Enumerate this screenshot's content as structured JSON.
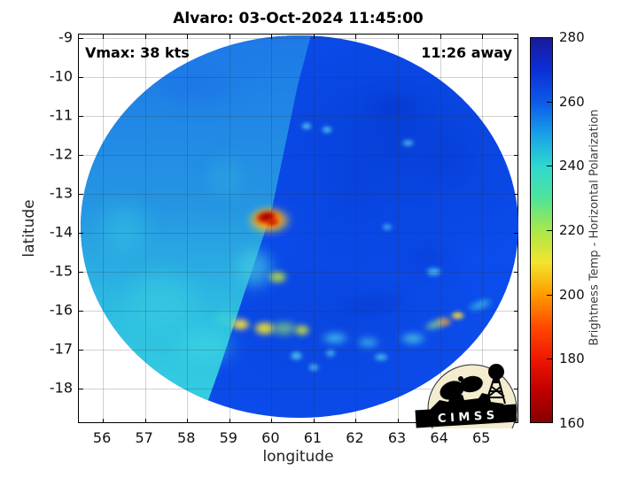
{
  "chart_data": {
    "type": "heatmap",
    "title": "Alvaro: 03-Oct-2024 11:45:00",
    "storm_name": "Alvaro",
    "datetime": "03-Oct-2024 11:45:00",
    "annotations": {
      "vmax": "Vmax: 38 kts",
      "eta": "11:26 away"
    },
    "xlabel": "longitude",
    "ylabel": "latitude",
    "xlim": [
      55.43,
      65.88
    ],
    "ylim": [
      -18.91,
      -8.91
    ],
    "xticks": [
      56,
      57,
      58,
      59,
      60,
      61,
      62,
      63,
      64,
      65
    ],
    "yticks": [
      -9,
      -10,
      -11,
      -12,
      -13,
      -14,
      -15,
      -16,
      -17,
      -18
    ],
    "grid": true,
    "colorbar": {
      "label": "Brightness Temp - Horizontal Polarization",
      "min": 160,
      "max": 280,
      "ticks": [
        160,
        180,
        200,
        220,
        240,
        260,
        280
      ],
      "stops": [
        {
          "v": 160,
          "c": "#870000"
        },
        {
          "v": 170,
          "c": "#c00000"
        },
        {
          "v": 180,
          "c": "#f01800"
        },
        {
          "v": 190,
          "c": "#ff4a00"
        },
        {
          "v": 200,
          "c": "#ff9c00"
        },
        {
          "v": 210,
          "c": "#f2e52e"
        },
        {
          "v": 220,
          "c": "#a8e84a"
        },
        {
          "v": 230,
          "c": "#4fe49a"
        },
        {
          "v": 240,
          "c": "#2ed8cf"
        },
        {
          "v": 250,
          "c": "#18a0e8"
        },
        {
          "v": 260,
          "c": "#0c5ae8"
        },
        {
          "v": 270,
          "c": "#0b2fd6"
        },
        {
          "v": 280,
          "c": "#1a1a99"
        }
      ]
    },
    "swath": {
      "center_lon": 60.67,
      "center_lat": -13.84,
      "radius_lon": 5.19,
      "radius_lat": 4.91,
      "left_half_mean_tb_k": 242,
      "right_half_mean_tb_k": 255
    },
    "features": [
      {
        "name": "dark-patch",
        "lon": 62.9,
        "lat": -10.8,
        "w": 1.9,
        "h": 1.0,
        "color": "#0634c8",
        "opacity": 0.5,
        "blur": 8,
        "rot": 0,
        "tb_k": 258
      },
      {
        "name": "dark-patch",
        "lon": 64.1,
        "lat": -12.0,
        "w": 1.3,
        "h": 1.6,
        "color": "#0a3cd4",
        "opacity": 0.45,
        "blur": 8,
        "rot": 0,
        "tb_k": 258
      },
      {
        "name": "dark-patch",
        "lon": 61.9,
        "lat": -12.9,
        "w": 1.2,
        "h": 1.6,
        "color": "#0a40d8",
        "opacity": 0.4,
        "blur": 8,
        "rot": 0,
        "tb_k": 257
      },
      {
        "name": "dark-patch",
        "lon": 63.7,
        "lat": -14.7,
        "w": 1.5,
        "h": 1.3,
        "color": "#0a3ad0",
        "opacity": 0.4,
        "blur": 8,
        "rot": 0,
        "tb_k": 257
      },
      {
        "name": "dark-band",
        "lon": 62.4,
        "lat": -15.85,
        "w": 2.4,
        "h": 0.8,
        "color": "#0836c8",
        "opacity": 0.4,
        "blur": 6,
        "rot": -8,
        "tb_k": 258
      },
      {
        "name": "left-cyan-area",
        "lon": 57.4,
        "lat": -15.8,
        "w": 2.6,
        "h": 2.3,
        "color": "#38cce0",
        "opacity": 0.65,
        "blur": 10,
        "rot": 0,
        "tb_k": 238
      },
      {
        "name": "left-cyan-area",
        "lon": 58.4,
        "lat": -16.9,
        "w": 1.9,
        "h": 1.4,
        "color": "#3cd4e4",
        "opacity": 0.6,
        "blur": 8,
        "rot": 0,
        "tb_k": 238
      },
      {
        "name": "left-cyan-area",
        "lon": 56.5,
        "lat": -13.9,
        "w": 1.7,
        "h": 2.0,
        "color": "#34c4e4",
        "opacity": 0.5,
        "blur": 10,
        "rot": 0,
        "tb_k": 240
      },
      {
        "name": "left-blue-top",
        "lon": 58.2,
        "lat": -10.2,
        "w": 2.6,
        "h": 1.4,
        "color": "#1b6ee8",
        "opacity": 0.5,
        "blur": 10,
        "rot": 0,
        "tb_k": 252
      },
      {
        "name": "left-cyan-area",
        "lon": 58.9,
        "lat": -12.6,
        "w": 1.3,
        "h": 1.6,
        "color": "#2fb4e4",
        "opacity": 0.35,
        "blur": 8,
        "rot": 0,
        "tb_k": 243
      },
      {
        "name": "core-cyan-halo",
        "lon": 59.6,
        "lat": -14.9,
        "w": 1.3,
        "h": 1.5,
        "color": "#45cce0",
        "opacity": 0.65,
        "blur": 6,
        "rot": 0,
        "tb_k": 235
      },
      {
        "name": "core-yellow-ring",
        "lon": 59.95,
        "lat": -13.68,
        "w": 1.3,
        "h": 0.85,
        "color": "#ffd21c",
        "opacity": 0.95,
        "blur": 4,
        "rot": 0,
        "tb_k": 205
      },
      {
        "name": "core-orange-ring",
        "lon": 59.92,
        "lat": -13.64,
        "w": 0.95,
        "h": 0.6,
        "color": "#ff5a00",
        "opacity": 0.95,
        "blur": 3,
        "rot": 0,
        "tb_k": 185
      },
      {
        "name": "core-deep-red",
        "lon": 59.87,
        "lat": -13.6,
        "w": 0.6,
        "h": 0.36,
        "color": "#a00000",
        "opacity": 0.97,
        "blur": 2,
        "rot": -12,
        "tb_k": 165
      },
      {
        "name": "core-red",
        "lon": 60.03,
        "lat": -13.73,
        "w": 0.4,
        "h": 0.28,
        "color": "#cc1400",
        "opacity": 0.9,
        "blur": 2,
        "rot": 0,
        "tb_k": 175
      },
      {
        "name": "green-cell",
        "lon": 60.15,
        "lat": -15.14,
        "w": 0.6,
        "h": 0.45,
        "color": "#b8e040",
        "opacity": 0.85,
        "blur": 3,
        "rot": 0,
        "tb_k": 215
      },
      {
        "name": "rainband-cyan",
        "lon": 58.9,
        "lat": -16.2,
        "w": 0.8,
        "h": 0.55,
        "color": "#3dd0d8",
        "opacity": 0.8,
        "blur": 4,
        "rot": 0,
        "tb_k": 232
      },
      {
        "name": "rainband-yellow",
        "lon": 59.27,
        "lat": -16.35,
        "w": 0.6,
        "h": 0.45,
        "color": "#ffe23c",
        "opacity": 0.9,
        "blur": 3,
        "rot": 0,
        "tb_k": 206
      },
      {
        "name": "rainband-yellow",
        "lon": 59.83,
        "lat": -16.46,
        "w": 0.7,
        "h": 0.5,
        "color": "#f0e030",
        "opacity": 0.9,
        "blur": 3,
        "rot": 0,
        "tb_k": 208
      },
      {
        "name": "rainband-green",
        "lon": 60.3,
        "lat": -16.45,
        "w": 0.9,
        "h": 0.5,
        "color": "#8fdc6c",
        "opacity": 0.7,
        "blur": 4,
        "rot": 0,
        "tb_k": 220
      },
      {
        "name": "rainband-yellowgreen",
        "lon": 60.73,
        "lat": -16.5,
        "w": 0.5,
        "h": 0.4,
        "color": "#cfe23c",
        "opacity": 0.85,
        "blur": 3,
        "rot": 0,
        "tb_k": 212
      },
      {
        "name": "rainband-cyan",
        "lon": 61.5,
        "lat": -16.7,
        "w": 0.85,
        "h": 0.4,
        "color": "#49c8ec",
        "opacity": 0.8,
        "blur": 4,
        "rot": 0,
        "tb_k": 236
      },
      {
        "name": "rainband-cyan",
        "lon": 62.3,
        "lat": -16.82,
        "w": 0.7,
        "h": 0.35,
        "color": "#49c8ec",
        "opacity": 0.75,
        "blur": 4,
        "rot": 0,
        "tb_k": 236
      },
      {
        "name": "rainband-cyan",
        "lon": 63.35,
        "lat": -16.72,
        "w": 0.8,
        "h": 0.4,
        "color": "#52d4e4",
        "opacity": 0.8,
        "blur": 4,
        "rot": 0,
        "tb_k": 235
      },
      {
        "name": "rainband-green",
        "lon": 63.9,
        "lat": -16.35,
        "w": 0.75,
        "h": 0.35,
        "color": "#8cdc8c",
        "opacity": 0.7,
        "blur": 3,
        "rot": -18,
        "tb_k": 222
      },
      {
        "name": "rainband-orange",
        "lon": 64.1,
        "lat": -16.28,
        "w": 0.5,
        "h": 0.3,
        "color": "#ffa030",
        "opacity": 0.8,
        "blur": 3,
        "rot": 0,
        "tb_k": 198
      },
      {
        "name": "rainband-yellow",
        "lon": 64.42,
        "lat": -16.12,
        "w": 0.45,
        "h": 0.3,
        "color": "#ffd83c",
        "opacity": 0.9,
        "blur": 2,
        "rot": 0,
        "tb_k": 205
      },
      {
        "name": "rim-cyan-streak",
        "lon": 64.95,
        "lat": -15.85,
        "w": 0.8,
        "h": 0.35,
        "color": "#40c4e8",
        "opacity": 0.7,
        "blur": 3,
        "rot": -20,
        "tb_k": 238
      },
      {
        "name": "cyan-speck",
        "lon": 60.6,
        "lat": -17.15,
        "w": 0.4,
        "h": 0.32,
        "color": "#54d4ec",
        "opacity": 0.8,
        "blur": 2,
        "rot": 0,
        "tb_k": 238
      },
      {
        "name": "cyan-speck",
        "lon": 61.0,
        "lat": -17.45,
        "w": 0.35,
        "h": 0.28,
        "color": "#54d4ec",
        "opacity": 0.75,
        "blur": 2,
        "rot": 0,
        "tb_k": 238
      },
      {
        "name": "cyan-speck",
        "lon": 61.4,
        "lat": -17.1,
        "w": 0.35,
        "h": 0.28,
        "color": "#54d4ec",
        "opacity": 0.7,
        "blur": 2,
        "rot": 0,
        "tb_k": 238
      },
      {
        "name": "cyan-speck",
        "lon": 62.6,
        "lat": -17.2,
        "w": 0.45,
        "h": 0.3,
        "color": "#54d4ec",
        "opacity": 0.7,
        "blur": 2,
        "rot": 0,
        "tb_k": 238
      },
      {
        "name": "cyan-speck",
        "lon": 60.83,
        "lat": -11.27,
        "w": 0.35,
        "h": 0.25,
        "color": "#5fd8f0",
        "opacity": 0.8,
        "blur": 2,
        "rot": 0,
        "tb_k": 240
      },
      {
        "name": "cyan-speck",
        "lon": 61.32,
        "lat": -11.36,
        "w": 0.35,
        "h": 0.25,
        "color": "#5fd8f0",
        "opacity": 0.8,
        "blur": 2,
        "rot": 0,
        "tb_k": 240
      },
      {
        "name": "cyan-speck",
        "lon": 63.25,
        "lat": -11.7,
        "w": 0.4,
        "h": 0.25,
        "color": "#5fd8f0",
        "opacity": 0.7,
        "blur": 2,
        "rot": 0,
        "tb_k": 240
      },
      {
        "name": "cyan-speck",
        "lon": 62.75,
        "lat": -13.85,
        "w": 0.35,
        "h": 0.25,
        "color": "#5fd8f0",
        "opacity": 0.6,
        "blur": 2,
        "rot": 0,
        "tb_k": 242
      },
      {
        "name": "cyan-speck",
        "lon": 63.85,
        "lat": -15.0,
        "w": 0.5,
        "h": 0.3,
        "color": "#5fd8f0",
        "opacity": 0.7,
        "blur": 2,
        "rot": 0,
        "tb_k": 240
      }
    ],
    "logo_text": "C I M S S"
  }
}
